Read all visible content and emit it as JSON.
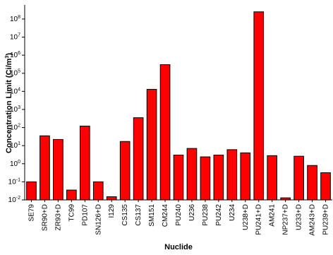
{
  "chart_data": {
    "type": "bar",
    "x_label": "Nuclide",
    "y_label": {
      "text": "Concentration Limit (Ci/m",
      "sup": "3",
      "end": ")"
    },
    "categories": [
      "SE79",
      "SR90+D",
      "ZR93+D",
      "TC99",
      "PD107",
      "SN126+D",
      "I129",
      "CS135",
      "CS137",
      "SM151",
      "CM244",
      "PU240",
      "U236",
      "PU238",
      "PU242",
      "U234",
      "U238+D",
      "PU241+D",
      "AM241",
      "NP237+D",
      "U233+D",
      "AM243+D",
      "PU239+D"
    ],
    "values": [
      0.1,
      35,
      22,
      0.035,
      120,
      0.1,
      0.015,
      17,
      350,
      13000,
      300000,
      3,
      7,
      2.4,
      3,
      6,
      4,
      250000000,
      2.8,
      0.013,
      2.6,
      0.8,
      0.32
    ],
    "color": "#ff0000",
    "log_y": true,
    "ylim": [
      0.01,
      600000000
    ],
    "yticks": [
      {
        "value": 0.01,
        "label": "10",
        "exp": "-2"
      },
      {
        "value": 0.1,
        "label": "10",
        "exp": "-1"
      },
      {
        "value": 1,
        "label": "10",
        "exp": "0"
      },
      {
        "value": 10,
        "label": "10",
        "exp": "1"
      },
      {
        "value": 100,
        "label": "10",
        "exp": "2"
      },
      {
        "value": 1000,
        "label": "10",
        "exp": "3"
      },
      {
        "value": 10000,
        "label": "10",
        "exp": "4"
      },
      {
        "value": 100000,
        "label": "10",
        "exp": "5"
      },
      {
        "value": 1000000,
        "label": "10",
        "exp": "6"
      },
      {
        "value": 10000000,
        "label": "10",
        "exp": "7"
      },
      {
        "value": 100000000,
        "label": "10",
        "exp": "8"
      }
    ]
  }
}
